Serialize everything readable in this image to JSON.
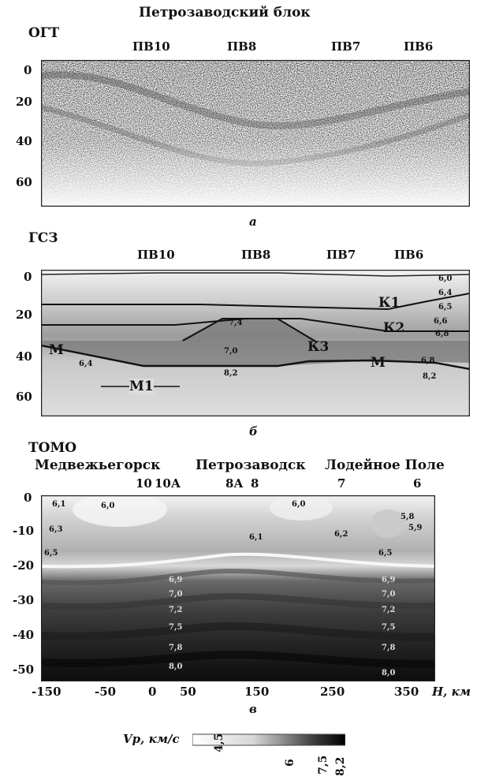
{
  "figure_title": "Петрозаводский блок",
  "panels": [
    {
      "method": "ОГТ",
      "letter": "а",
      "markers": [
        "ПВ10",
        "ПВ8",
        "ПВ7",
        "ПВ6"
      ],
      "depth_ticks": [
        "0",
        "20",
        "40",
        "60"
      ]
    },
    {
      "method": "ГСЗ",
      "letter": "б",
      "markers": [
        "ПВ10",
        "ПВ8",
        "ПВ7",
        "ПВ6"
      ],
      "depth_ticks": [
        "0",
        "20",
        "40",
        "60"
      ],
      "boundaries": [
        "К1",
        "К2",
        "К3",
        "М",
        "М",
        "М1"
      ],
      "velocity_labels": [
        "6,0",
        "6,4",
        "6,5",
        "6,6",
        "6,8",
        "7,4",
        "7,0",
        "6,4",
        "8,2",
        "6,8",
        "8,2"
      ]
    },
    {
      "method": "ТОМО",
      "letter": "в",
      "towns": [
        "Медвежьегорск",
        "Петрозаводск",
        "Лодейное Поле"
      ],
      "markers": [
        "10",
        "10А",
        "8А",
        "8",
        "7",
        "6"
      ],
      "depth_ticks": [
        "0",
        "-10",
        "-20",
        "-30",
        "-40",
        "-50"
      ],
      "x_ticks": [
        "-150",
        "-50",
        "0",
        "50",
        "150",
        "250",
        "350"
      ],
      "x_axis_label": "H, км",
      "velocity_labels": [
        "6,1",
        "6,0",
        "6,3",
        "6,5",
        "6,1",
        "6,0",
        "6,2",
        "5,8",
        "5,9",
        "6,5",
        "6,9",
        "7,0",
        "7,2",
        "7,5",
        "7,8",
        "8,0",
        "6,9",
        "7,0",
        "7,2",
        "7,5",
        "7,8",
        "8,0"
      ]
    }
  ],
  "colorbar": {
    "label": "Vp, км/с",
    "ticks": [
      "4,5",
      "6",
      "7,5",
      "8,2"
    ]
  }
}
